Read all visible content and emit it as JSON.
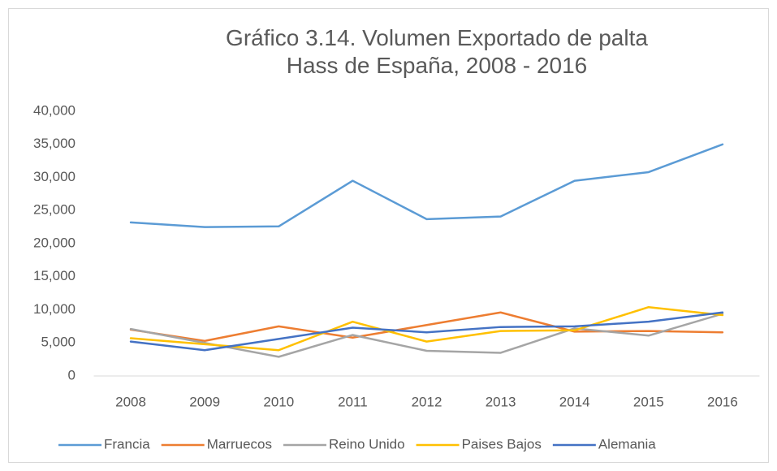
{
  "chart_data": {
    "type": "line",
    "title": "Gráfico 3.14. Volumen Exportado de palta Hass de España, 2008 - 2016",
    "categories": [
      "2008",
      "2009",
      "2010",
      "2011",
      "2012",
      "2013",
      "2014",
      "2015",
      "2016"
    ],
    "series": [
      {
        "name": "Francia",
        "color": "#5b9bd5",
        "values": [
          23200,
          22500,
          22600,
          29500,
          23700,
          24100,
          29500,
          30800,
          35000
        ]
      },
      {
        "name": "Marruecos",
        "color": "#ed7d31",
        "values": [
          7000,
          5300,
          7500,
          5800,
          7700,
          9600,
          6700,
          6800,
          6600
        ]
      },
      {
        "name": "Reino Unido",
        "color": "#a5a5a5",
        "values": [
          7100,
          5000,
          2900,
          6200,
          3800,
          3500,
          7200,
          6100,
          9400
        ]
      },
      {
        "name": "Paises Bajos",
        "color": "#ffc000",
        "values": [
          5700,
          4800,
          3900,
          8200,
          5200,
          6800,
          6900,
          10400,
          9200
        ]
      },
      {
        "name": "Alemania",
        "color": "#4472c4",
        "values": [
          5200,
          3900,
          5600,
          7300,
          6600,
          7400,
          7500,
          8200,
          9600
        ]
      }
    ],
    "ylim": [
      0,
      40000
    ],
    "yticks": [
      0,
      {
        "value": 5000,
        "label": "5,000"
      },
      {
        "value": 10000,
        "label": "10,000"
      },
      {
        "value": 15000,
        "label": "15,000"
      },
      {
        "value": 20000,
        "label": "20,000"
      },
      {
        "value": 25000,
        "label": "25,000"
      },
      {
        "value": 30000,
        "label": "30,000"
      },
      {
        "value": 35000,
        "label": "35,000"
      },
      {
        "value": 40000,
        "label": "40,000"
      }
    ],
    "grid": false,
    "legend": "bottom"
  }
}
